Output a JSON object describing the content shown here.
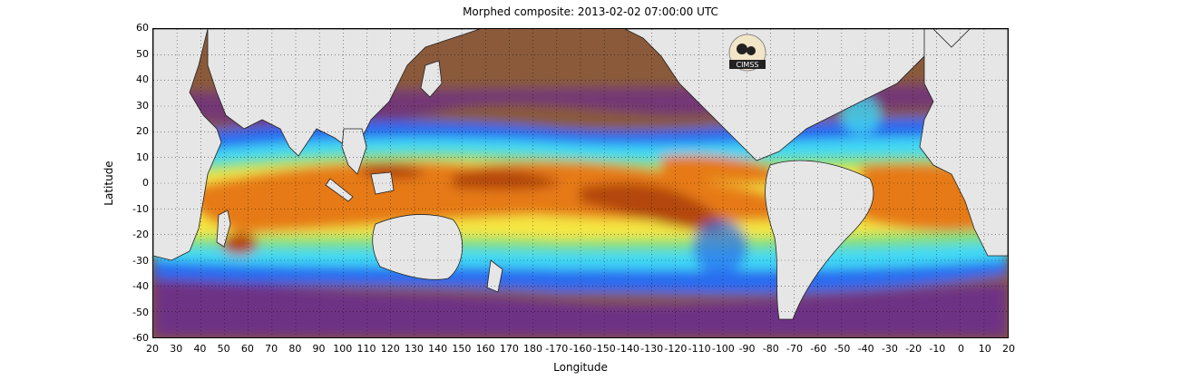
{
  "title": "Morphed composite: 2013-02-02 07:00:00 UTC",
  "xlabel": "Longitude",
  "ylabel": "Latitude",
  "logo_text": "CIMSS",
  "yticks": [
    "60",
    "50",
    "40",
    "30",
    "20",
    "10",
    "0",
    "-10",
    "-20",
    "-30",
    "-40",
    "-50",
    "-60"
  ],
  "xticks": [
    "20",
    "30",
    "40",
    "50",
    "60",
    "70",
    "80",
    "90",
    "100",
    "110",
    "120",
    "130",
    "140",
    "150",
    "160",
    "170",
    "180",
    "-170",
    "-160",
    "-150",
    "-140",
    "-130",
    "-120",
    "-110",
    "-100",
    "-90",
    "-80",
    "-70",
    "-60",
    "-50",
    "-40",
    "-30",
    "-20",
    "-10",
    "0",
    "10",
    "20"
  ],
  "map": {
    "lat_range": [
      -60,
      60
    ],
    "lon_range": [
      20,
      380
    ],
    "colors": {
      "dry": "#8a5a3a",
      "purple": "#6a2b8e",
      "blue": "#2a6cf0",
      "cyan": "#3fd8f5",
      "green": "#7fe07a",
      "yellow": "#f5e642",
      "orange": "#e67a12",
      "darkorange": "#b3470c",
      "land": "#e6e6e6"
    }
  }
}
